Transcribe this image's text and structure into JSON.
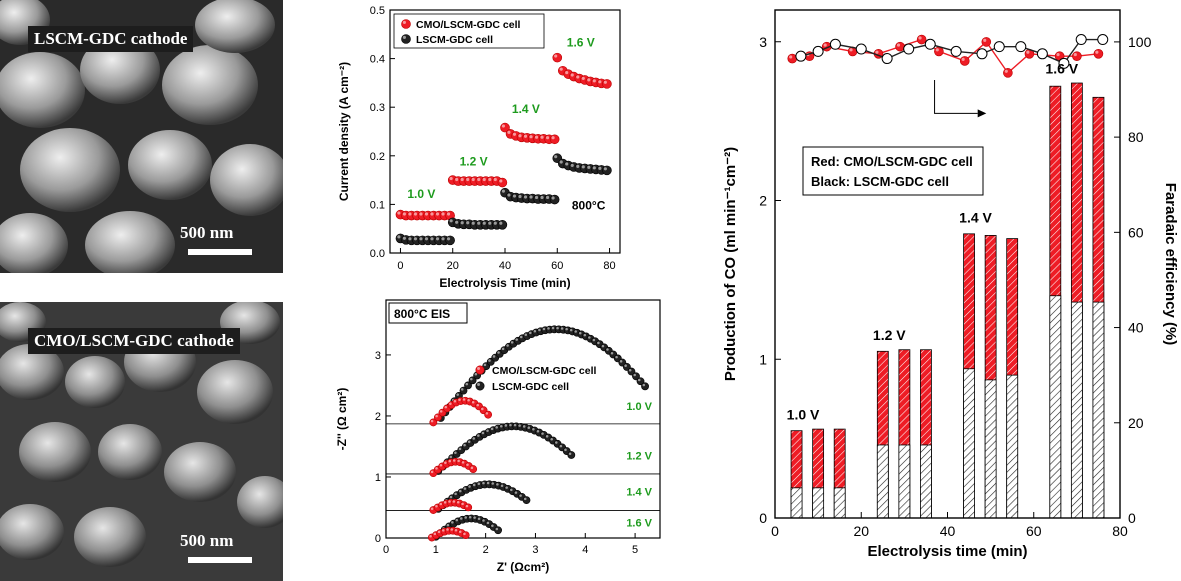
{
  "sem_images": [
    {
      "label": "LSCM-GDC cathode",
      "scale_label": "500 nm"
    },
    {
      "label": "CMO/LSCM-GDC cathode",
      "scale_label": "500 nm"
    }
  ],
  "chart_data": [
    {
      "type": "scatter",
      "xlabel": "Electrolysis Time (min)",
      "ylabel": "Current density (A cm⁻²)",
      "xlim": [
        -4,
        84
      ],
      "ylim": [
        0,
        0.5
      ],
      "xticks": [
        0,
        20,
        40,
        60,
        80
      ],
      "yticks": [
        0.0,
        0.1,
        0.2,
        0.3,
        0.4,
        0.5
      ],
      "series": [
        {
          "name": "CMO/LSCM-GDC cell",
          "color": "#ee1c25",
          "segments": [
            {
              "x_start": 0,
              "x_end": 19,
              "values": [
                0.079,
                0.077,
                0.077,
                0.077,
                0.077,
                0.077,
                0.077,
                0.077,
                0.077,
                0.077
              ]
            },
            {
              "x_start": 20,
              "x_end": 39,
              "values": [
                0.15,
                0.148,
                0.148,
                0.148,
                0.148,
                0.148,
                0.148,
                0.148,
                0.148,
                0.145
              ]
            },
            {
              "x_start": 40,
              "x_end": 59,
              "values": [
                0.258,
                0.245,
                0.241,
                0.238,
                0.237,
                0.236,
                0.235,
                0.235,
                0.234,
                0.234
              ]
            },
            {
              "x_start": 60,
              "x_end": 79,
              "values": [
                0.402,
                0.375,
                0.368,
                0.363,
                0.359,
                0.356,
                0.353,
                0.351,
                0.349,
                0.348
              ]
            }
          ]
        },
        {
          "name": "LSCM-GDC cell",
          "color": "#222222",
          "segments": [
            {
              "x_start": 0,
              "x_end": 19,
              "values": [
                0.03,
                0.027,
                0.026,
                0.026,
                0.026,
                0.026,
                0.026,
                0.026,
                0.026,
                0.026
              ]
            },
            {
              "x_start": 20,
              "x_end": 39,
              "values": [
                0.063,
                0.06,
                0.059,
                0.059,
                0.058,
                0.058,
                0.058,
                0.058,
                0.058,
                0.058
              ]
            },
            {
              "x_start": 40,
              "x_end": 59,
              "values": [
                0.124,
                0.116,
                0.114,
                0.113,
                0.112,
                0.112,
                0.111,
                0.111,
                0.111,
                0.11
              ]
            },
            {
              "x_start": 60,
              "x_end": 79,
              "values": [
                0.195,
                0.184,
                0.18,
                0.177,
                0.175,
                0.174,
                0.173,
                0.172,
                0.171,
                0.17
              ]
            }
          ]
        }
      ],
      "annotations": [
        {
          "text": "1.0 V",
          "x": 8,
          "y": 0.113
        },
        {
          "text": "1.2 V",
          "x": 28,
          "y": 0.18
        },
        {
          "text": "1.4 V",
          "x": 48,
          "y": 0.288
        },
        {
          "text": "1.6 V",
          "x": 69,
          "y": 0.425
        },
        {
          "text": "800°C",
          "x": 72,
          "y": 0.09
        }
      ],
      "legend": "top-left"
    },
    {
      "type": "scatter",
      "xlabel": "Z' (Ωcm²)",
      "ylabel": "-Z'' (Ω cm²)",
      "xlim": [
        0,
        5.5
      ],
      "ylim": [
        0,
        3.9
      ],
      "xticks": [
        0,
        1,
        2,
        3,
        4,
        5
      ],
      "yticks": [
        0,
        1,
        2,
        3
      ],
      "box_label": "800°C EIS",
      "offset_lines": [
        1.87,
        1.05,
        0.45
      ],
      "voltage_labels": [
        {
          "text": "1.0 V",
          "y": 2.1
        },
        {
          "text": "1.2 V",
          "y": 1.29
        },
        {
          "text": "1.4 V",
          "y": 0.7
        },
        {
          "text": "1.6 V",
          "y": 0.19
        }
      ],
      "arcs": [
        {
          "series": "LSCM-GDC cell",
          "voltage": "1.0 V",
          "r0": 1.1,
          "r1": 5.2,
          "offset": 1.87,
          "max": 1.55
        },
        {
          "series": "CMO/LSCM-GDC cell",
          "voltage": "1.0 V",
          "r0": 0.95,
          "r1": 2.05,
          "offset": 1.87,
          "max": 0.38
        },
        {
          "series": "LSCM-GDC cell",
          "voltage": "1.2 V",
          "r0": 1.05,
          "r1": 3.72,
          "offset": 1.05,
          "max": 0.78
        },
        {
          "series": "CMO/LSCM-GDC cell",
          "voltage": "1.2 V",
          "r0": 0.95,
          "r1": 1.75,
          "offset": 1.05,
          "max": 0.2
        },
        {
          "series": "LSCM-GDC cell",
          "voltage": "1.4 V",
          "r0": 1.05,
          "r1": 2.82,
          "offset": 0.45,
          "max": 0.43
        },
        {
          "series": "CMO/LSCM-GDC cell",
          "voltage": "1.4 V",
          "r0": 0.95,
          "r1": 1.65,
          "offset": 0.45,
          "max": 0.13
        },
        {
          "series": "LSCM-GDC cell",
          "voltage": "1.6 V",
          "r0": 1.0,
          "r1": 2.25,
          "offset": 0,
          "max": 0.32
        },
        {
          "series": "CMO/LSCM-GDC cell",
          "voltage": "1.6 V",
          "r0": 0.92,
          "r1": 1.6,
          "offset": 0,
          "max": 0.12
        }
      ],
      "series": [
        {
          "name": "CMO/LSCM-GDC cell",
          "color": "#ee1c25"
        },
        {
          "name": "LSCM-GDC cell",
          "color": "#222222"
        }
      ]
    },
    {
      "type": "bar",
      "xlabel": "Electrolysis time (min)",
      "ylabel": "Production of CO (ml min⁻¹cm⁻²)",
      "ylabel_right": "Faradaic efficiency (%)",
      "xlim": [
        0,
        80
      ],
      "ylim": [
        0,
        3.2
      ],
      "ylim_right": [
        0,
        106.7
      ],
      "xticks": [
        0,
        20,
        40,
        60,
        80
      ],
      "yticks": [
        0,
        1,
        2,
        3
      ],
      "yticks_right": [
        0,
        20,
        40,
        60,
        80,
        100
      ],
      "x": [
        5,
        10,
        15,
        25,
        30,
        35,
        45,
        50,
        55,
        65,
        70,
        75
      ],
      "series": [
        {
          "name": "CMO/LSCM-GDC cell",
          "color": "#ee1c25",
          "values": [
            0.55,
            0.56,
            0.56,
            1.05,
            1.06,
            1.06,
            1.79,
            1.78,
            1.76,
            2.72,
            2.74,
            2.65
          ]
        },
        {
          "name": "LSCM-GDC cell",
          "color": "#222222",
          "values": [
            0.19,
            0.19,
            0.19,
            0.46,
            0.46,
            0.46,
            0.94,
            0.87,
            0.9,
            1.4,
            1.36,
            1.36
          ]
        }
      ],
      "efficiency_series": [
        {
          "name": "CMO/LSCM-GDC cell",
          "color": "#ee1c25",
          "x": [
            4,
            8,
            12,
            18,
            24,
            29,
            34,
            38,
            44,
            49,
            54,
            59,
            66,
            70,
            75
          ],
          "values": [
            96.5,
            97.0,
            99.0,
            98.0,
            97.5,
            99.0,
            100.5,
            98.0,
            96.0,
            100.0,
            93.5,
            97.5,
            97.0,
            97.0,
            97.5
          ]
        },
        {
          "name": "LSCM-GDC cell",
          "color": "#222222",
          "x": [
            6,
            10,
            14,
            20,
            26,
            31,
            36,
            42,
            48,
            52,
            57,
            62,
            67,
            71,
            76
          ],
          "values": [
            97.0,
            98.0,
            99.5,
            98.5,
            96.5,
            98.5,
            99.5,
            98.0,
            97.5,
            99.0,
            99.0,
            97.5,
            95.5,
            100.5,
            100.5
          ]
        }
      ],
      "annotations": [
        {
          "text": "1.0 V",
          "x": 6.5,
          "y": 0.62
        },
        {
          "text": "1.2 V",
          "x": 26.5,
          "y": 1.12
        },
        {
          "text": "1.4 V",
          "x": 46.5,
          "y": 1.86
        },
        {
          "text": "1.6 V",
          "x": 66.5,
          "y": 2.8
        }
      ],
      "legend_text": [
        "Red: CMO/LSCM-GDC cell",
        "Black: LSCM-GDC cell"
      ]
    }
  ]
}
